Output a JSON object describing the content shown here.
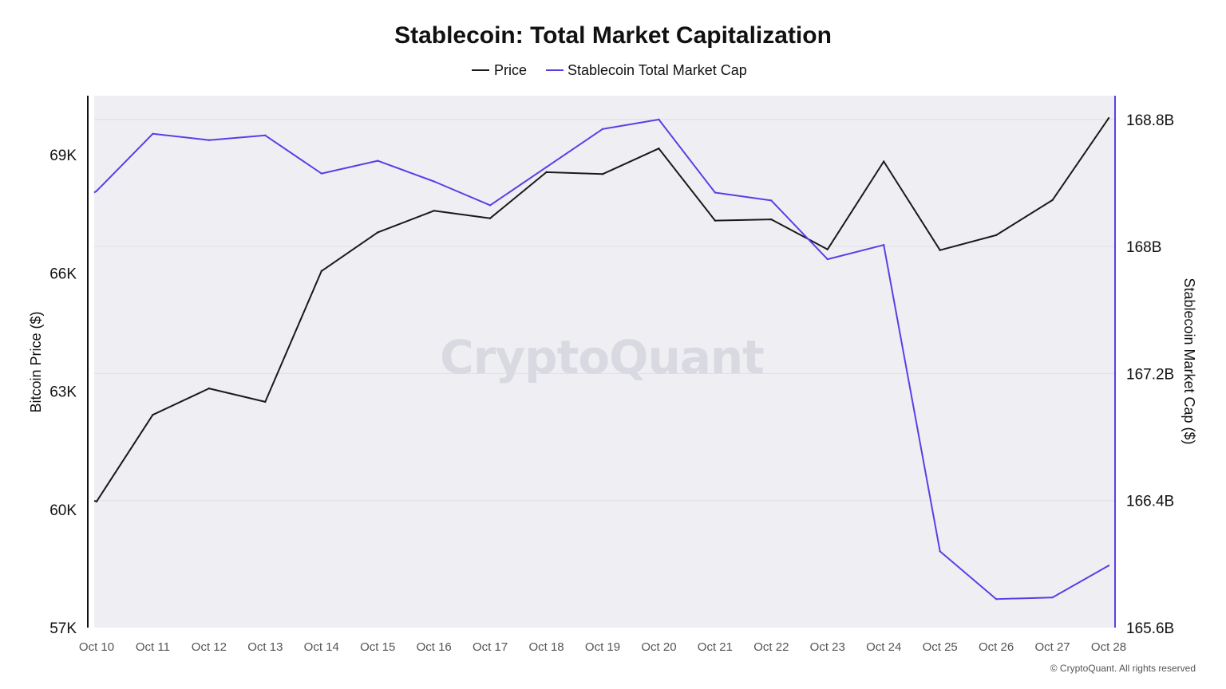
{
  "chart_data": {
    "type": "line",
    "title": "Stablecoin: Total Market Capitalization",
    "categories": [
      "Oct 10",
      "Oct 11",
      "Oct 12",
      "Oct 13",
      "Oct 14",
      "Oct 15",
      "Oct 16",
      "Oct 17",
      "Oct 18",
      "Oct 19",
      "Oct 20",
      "Oct 21",
      "Oct 22",
      "Oct 23",
      "Oct 24",
      "Oct 25",
      "Oct 26",
      "Oct 27",
      "Oct 28"
    ],
    "series": [
      {
        "name": "Price",
        "axis": "left",
        "color": "#1a1a1a",
        "values": [
          60200,
          62400,
          63070,
          62730,
          66050,
          67030,
          67580,
          67390,
          68560,
          68510,
          69160,
          67330,
          67360,
          66600,
          68830,
          66580,
          66960,
          67850,
          69930
        ]
      },
      {
        "name": "Stablecoin Total Market Cap",
        "axis": "right",
        "color": "#5b3ee6",
        "values": [
          168350,
          168710,
          168670,
          168700,
          168460,
          168540,
          168410,
          168260,
          168500,
          168740,
          168800,
          168340,
          168290,
          167920,
          168010,
          166080,
          165780,
          165790,
          165990
        ]
      }
    ],
    "y_left": {
      "label": "Bitcoin Price ($)",
      "range": [
        57000,
        70500
      ],
      "ticks": [
        57000,
        60000,
        63000,
        66000,
        69000
      ],
      "tick_labels": [
        "57K",
        "60K",
        "63K",
        "66K",
        "69K"
      ]
    },
    "y_right": {
      "label": "Stablecoin Market Cap ($)",
      "unit": "millions USD",
      "range": [
        165600,
        168950
      ],
      "ticks": [
        165600,
        166400,
        167200,
        168000,
        168800
      ],
      "tick_labels": [
        "165.6B",
        "166.4B",
        "167.2B",
        "168B",
        "168.8B"
      ]
    },
    "grid": true,
    "legend": "top-center",
    "watermark": "CryptoQuant",
    "footer": "© CryptoQuant. All rights reserved"
  }
}
